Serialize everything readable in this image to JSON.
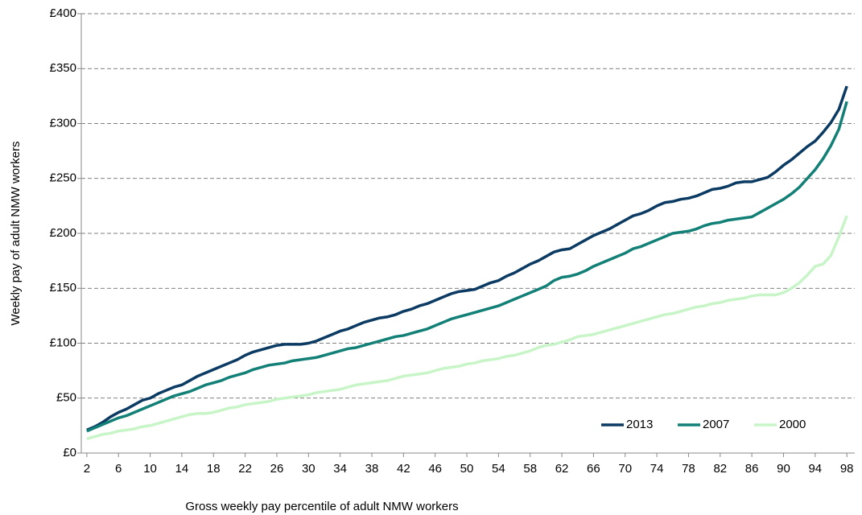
{
  "chart_data": {
    "type": "line",
    "x_label": "Gross weekly pay percentile of adult NMW workers",
    "y_label": "Weekly pay of adult NMW workers",
    "x": [
      2,
      3,
      4,
      5,
      6,
      7,
      8,
      9,
      10,
      11,
      12,
      13,
      14,
      15,
      16,
      17,
      18,
      19,
      20,
      21,
      22,
      23,
      24,
      25,
      26,
      27,
      28,
      29,
      30,
      31,
      32,
      33,
      34,
      35,
      36,
      37,
      38,
      39,
      40,
      41,
      42,
      43,
      44,
      45,
      46,
      47,
      48,
      49,
      50,
      51,
      52,
      53,
      54,
      55,
      56,
      57,
      58,
      59,
      60,
      61,
      62,
      63,
      64,
      65,
      66,
      67,
      68,
      69,
      70,
      71,
      72,
      73,
      74,
      75,
      76,
      77,
      78,
      79,
      80,
      81,
      82,
      83,
      84,
      85,
      86,
      87,
      88,
      89,
      90,
      91,
      92,
      93,
      94,
      95,
      96,
      97,
      98
    ],
    "xlim": [
      1.3,
      99
    ],
    "xticks": [
      2,
      6,
      10,
      14,
      18,
      22,
      26,
      30,
      34,
      38,
      42,
      46,
      50,
      54,
      58,
      62,
      66,
      70,
      74,
      78,
      82,
      86,
      90,
      94,
      98
    ],
    "ylim": [
      0,
      400
    ],
    "yticks": [
      {
        "value": 0,
        "label": "£0"
      },
      {
        "value": 50,
        "label": "£50"
      },
      {
        "value": 100,
        "label": "£100"
      },
      {
        "value": 150,
        "label": "£150"
      },
      {
        "value": 200,
        "label": "£200"
      },
      {
        "value": 250,
        "label": "£250"
      },
      {
        "value": 300,
        "label": "£300"
      },
      {
        "value": 350,
        "label": "£350"
      },
      {
        "value": 400,
        "label": "£400"
      }
    ],
    "grid": true,
    "legend": "lower right",
    "series": [
      {
        "name": "2013",
        "color": "#0b3a62",
        "values": [
          21,
          24,
          28,
          33,
          37,
          40,
          44,
          48,
          50,
          54,
          57,
          60,
          62,
          66,
          70,
          73,
          76,
          79,
          82,
          85,
          89,
          92,
          94,
          96,
          98,
          99,
          99,
          99,
          100,
          102,
          105,
          108,
          111,
          113,
          116,
          119,
          121,
          123,
          124,
          126,
          129,
          131,
          134,
          136,
          139,
          142,
          145,
          147,
          148,
          149,
          152,
          155,
          157,
          161,
          164,
          168,
          172,
          175,
          179,
          183,
          185,
          186,
          190,
          194,
          198,
          201,
          204,
          208,
          212,
          216,
          218,
          221,
          225,
          228,
          229,
          231,
          232,
          234,
          237,
          240,
          241,
          243,
          246,
          247,
          247,
          249,
          251,
          256,
          262,
          267,
          273,
          279,
          284,
          292,
          301,
          313,
          334
        ]
      },
      {
        "name": "2007",
        "color": "#128076",
        "values": [
          20,
          23,
          26,
          29,
          32,
          34,
          37,
          40,
          43,
          46,
          49,
          52,
          54,
          56,
          59,
          62,
          64,
          66,
          69,
          71,
          73,
          76,
          78,
          80,
          81,
          82,
          84,
          85,
          86,
          87,
          89,
          91,
          93,
          95,
          96,
          98,
          100,
          102,
          104,
          106,
          107,
          109,
          111,
          113,
          116,
          119,
          122,
          124,
          126,
          128,
          130,
          132,
          134,
          137,
          140,
          143,
          146,
          149,
          152,
          157,
          160,
          161,
          163,
          166,
          170,
          173,
          176,
          179,
          182,
          186,
          188,
          191,
          194,
          197,
          200,
          201,
          202,
          204,
          207,
          209,
          210,
          212,
          213,
          214,
          215,
          219,
          223,
          227,
          231,
          236,
          242,
          250,
          258,
          268,
          280,
          295,
          320
        ]
      },
      {
        "name": "2000",
        "color": "#c8f5c8",
        "values": [
          13,
          15,
          17,
          18,
          20,
          21,
          22,
          24,
          25,
          27,
          29,
          31,
          33,
          35,
          36,
          36,
          37,
          39,
          41,
          42,
          44,
          45,
          46,
          47,
          49,
          50,
          51,
          52,
          53,
          55,
          56,
          57,
          58,
          60,
          62,
          63,
          64,
          65,
          66,
          68,
          70,
          71,
          72,
          73,
          75,
          77,
          78,
          79,
          81,
          82,
          84,
          85,
          86,
          88,
          89,
          91,
          93,
          96,
          98,
          99,
          101,
          103,
          106,
          107,
          108,
          110,
          112,
          114,
          116,
          118,
          120,
          122,
          124,
          126,
          127,
          129,
          131,
          133,
          134,
          136,
          137,
          139,
          140,
          141,
          143,
          144,
          144,
          144,
          146,
          150,
          155,
          162,
          170,
          172,
          180,
          197,
          216
        ]
      }
    ]
  }
}
